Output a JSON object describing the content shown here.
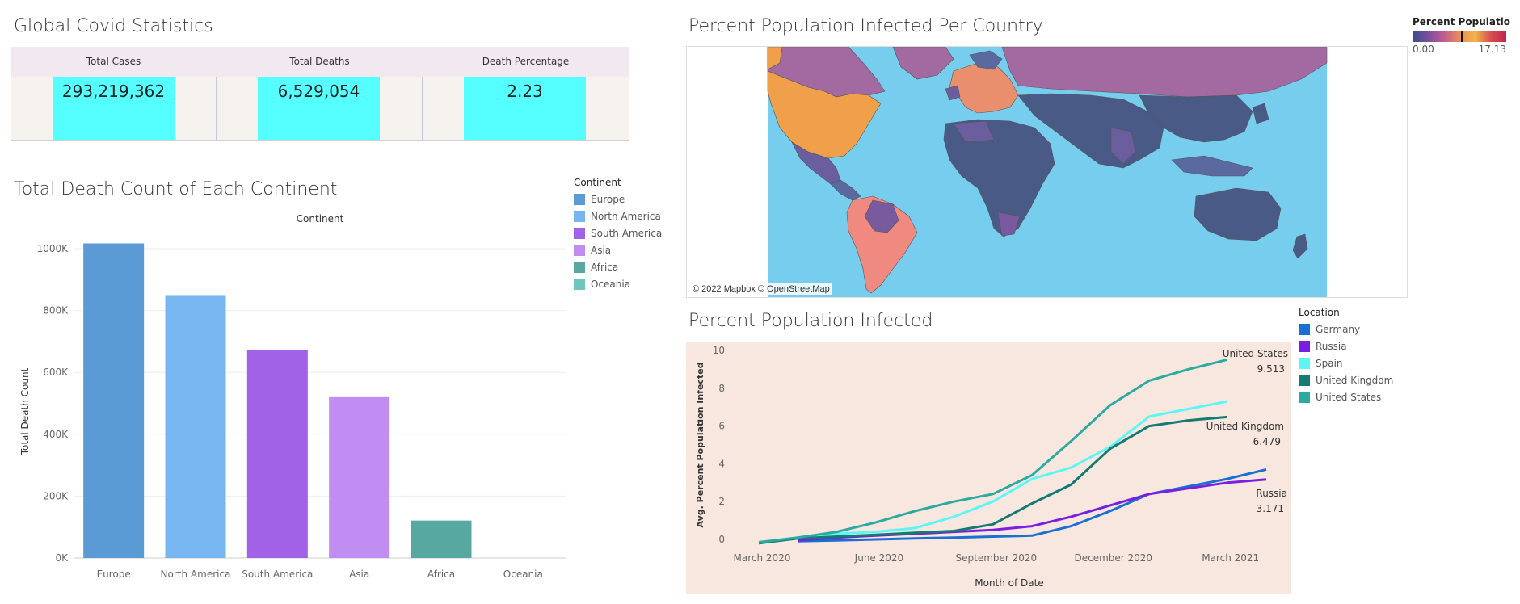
{
  "global_stats": {
    "title": "Global Covid Statistics",
    "headers": [
      "Total Cases",
      "Total Deaths",
      "Death Percentage"
    ],
    "values": [
      "293,219,362",
      "6,529,054",
      "2.23"
    ]
  },
  "bar_section": {
    "title": "Total Death Count of Each Continent",
    "legend": {
      "title": "Continent",
      "items": [
        {
          "label": "Europe",
          "color": "#5b9bd5"
        },
        {
          "label": "North America",
          "color": "#77b6f0"
        },
        {
          "label": "South America",
          "color": "#a162e8"
        },
        {
          "label": "Asia",
          "color": "#c08ef3"
        },
        {
          "label": "Africa",
          "color": "#56a8a1"
        },
        {
          "label": "Oceania",
          "color": "#6ec6bd"
        }
      ]
    }
  },
  "map_section": {
    "title": "Percent Population Infected Per Country",
    "attribution": "© 2022 Mapbox © OpenStreetMap",
    "legend_title": "Percent Populatio..",
    "legend_min": "0.00",
    "legend_max": "17.13"
  },
  "line_section": {
    "title": "Percent Population Infected",
    "legend": {
      "title": "Location",
      "items": [
        {
          "label": "Germany",
          "color": "#1a6fd3"
        },
        {
          "label": "Russia",
          "color": "#7a1fe0"
        },
        {
          "label": "Spain",
          "color": "#5cf6f6"
        },
        {
          "label": "United Kingdom",
          "color": "#147a72"
        },
        {
          "label": "United States",
          "color": "#2ca9a0"
        }
      ]
    }
  },
  "chart_data": [
    {
      "type": "bar",
      "title": "",
      "header": "Continent",
      "categories": [
        "Europe",
        "North America",
        "South America",
        "Asia",
        "Africa",
        "Oceania"
      ],
      "values": [
        1017000,
        850000,
        672000,
        520000,
        121000,
        0
      ],
      "colors": [
        "#5b9bd5",
        "#77b6f0",
        "#a162e8",
        "#c08ef3",
        "#56a8a1",
        "#6ec6bd"
      ],
      "xlabel": "",
      "ylabel": "Total Death Count",
      "ylim": [
        0,
        1000000
      ],
      "yticks": [
        0,
        200000,
        400000,
        600000,
        800000,
        1000000
      ],
      "ytick_labels": [
        "0K",
        "200K",
        "400K",
        "600K",
        "800K",
        "1000K"
      ],
      "grid": true
    },
    {
      "type": "line",
      "title": "",
      "xlabel": "Month of Date",
      "ylabel": "Avg. Percent Population Infected",
      "x": [
        "2020-03",
        "2020-04",
        "2020-05",
        "2020-06",
        "2020-07",
        "2020-08",
        "2020-09",
        "2020-10",
        "2020-11",
        "2020-12",
        "2021-01",
        "2021-02",
        "2021-03",
        "2021-04"
      ],
      "xticks": [
        "March 2020",
        "June 2020",
        "September 2020",
        "December 2020",
        "March 2021"
      ],
      "ylim": [
        0,
        10
      ],
      "yticks": [
        0,
        2,
        4,
        6,
        8,
        10
      ],
      "series": [
        {
          "name": "Germany",
          "color": "#1a6fd3",
          "values": [
            null,
            -0.1,
            -0.05,
            0.0,
            0.05,
            0.1,
            0.15,
            0.2,
            0.7,
            1.5,
            2.4,
            2.8,
            3.2,
            3.7
          ]
        },
        {
          "name": "Russia",
          "color": "#7a1fe0",
          "values": [
            null,
            -0.05,
            0.1,
            0.2,
            0.3,
            0.4,
            0.5,
            0.7,
            1.2,
            1.8,
            2.4,
            2.7,
            3.0,
            3.171
          ]
        },
        {
          "name": "Spain",
          "color": "#5cf6f6",
          "values": [
            -0.2,
            0.1,
            0.3,
            0.4,
            0.6,
            1.2,
            2.0,
            3.2,
            3.8,
            4.9,
            6.5,
            6.9,
            7.3,
            null
          ]
        },
        {
          "name": "United Kingdom",
          "color": "#147a72",
          "values": [
            -0.2,
            0.05,
            0.15,
            0.25,
            0.35,
            0.45,
            0.8,
            1.9,
            2.9,
            4.8,
            6.0,
            6.3,
            6.479,
            null
          ]
        },
        {
          "name": "United States",
          "color": "#2ca9a0",
          "values": [
            -0.15,
            0.1,
            0.4,
            0.9,
            1.5,
            2.0,
            2.4,
            3.4,
            5.2,
            7.1,
            8.4,
            9.0,
            9.513,
            null
          ]
        }
      ],
      "annotations": [
        {
          "series": "United States",
          "label": "United States",
          "value": "9.513"
        },
        {
          "series": "United Kingdom",
          "label": "United Kingdom",
          "value": "6.479"
        },
        {
          "series": "Russia",
          "label": "Russia",
          "value": "3.171"
        }
      ]
    }
  ]
}
